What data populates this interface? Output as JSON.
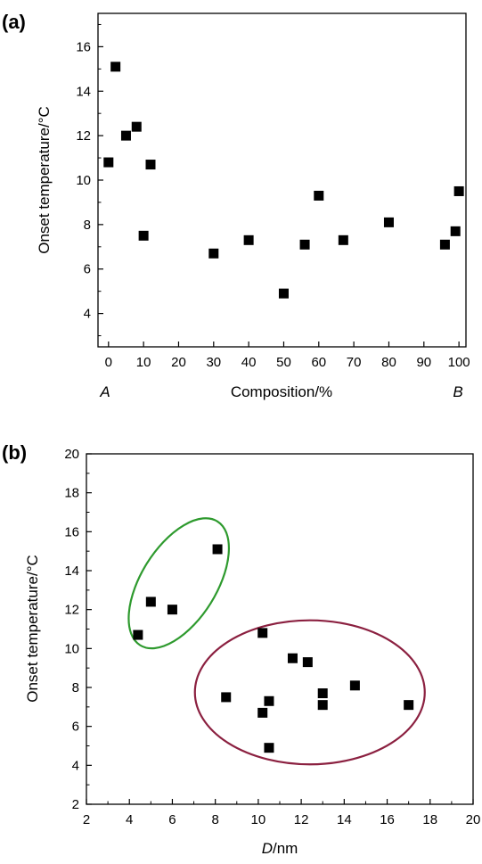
{
  "chart_data": [
    {
      "type": "scatter",
      "panel_label": "(a)",
      "xlabel": "Composition/%",
      "ylabel": "Onset temperature/°C",
      "xlim": [
        -3,
        102
      ],
      "ylim": [
        2.5,
        17.5
      ],
      "x_ticks": [
        0,
        10,
        20,
        30,
        40,
        50,
        60,
        70,
        80,
        90,
        100
      ],
      "y_ticks": [
        4,
        6,
        8,
        10,
        12,
        14,
        16
      ],
      "x_end_labels": {
        "left": "A",
        "right": "B"
      },
      "marker": "square",
      "marker_color": "#000000",
      "points": [
        {
          "x": 0,
          "y": 10.8
        },
        {
          "x": 2,
          "y": 15.1
        },
        {
          "x": 5,
          "y": 12.0
        },
        {
          "x": 8,
          "y": 12.4
        },
        {
          "x": 10,
          "y": 7.5
        },
        {
          "x": 12,
          "y": 10.7
        },
        {
          "x": 30,
          "y": 6.7
        },
        {
          "x": 40,
          "y": 7.3
        },
        {
          "x": 50,
          "y": 4.9
        },
        {
          "x": 56,
          "y": 7.1
        },
        {
          "x": 60,
          "y": 9.3
        },
        {
          "x": 67,
          "y": 7.3
        },
        {
          "x": 80,
          "y": 8.1
        },
        {
          "x": 96,
          "y": 7.1
        },
        {
          "x": 99,
          "y": 7.7
        },
        {
          "x": 100,
          "y": 9.5
        }
      ]
    },
    {
      "type": "scatter",
      "panel_label": "(b)",
      "xlabel_italic": "D",
      "xlabel_rest": "/nm",
      "ylabel": "Onset temperature/°C",
      "xlim": [
        2,
        20
      ],
      "ylim": [
        2,
        20
      ],
      "x_ticks": [
        2,
        4,
        6,
        8,
        10,
        12,
        14,
        16,
        18,
        20
      ],
      "y_ticks": [
        2,
        4,
        6,
        8,
        10,
        12,
        14,
        16,
        18,
        20
      ],
      "marker": "square",
      "marker_color": "#000000",
      "points": [
        {
          "x": 4.4,
          "y": 10.7
        },
        {
          "x": 5.0,
          "y": 12.4
        },
        {
          "x": 6.0,
          "y": 12.0
        },
        {
          "x": 8.1,
          "y": 15.1
        },
        {
          "x": 8.5,
          "y": 7.5
        },
        {
          "x": 10.2,
          "y": 10.8
        },
        {
          "x": 10.2,
          "y": 6.7
        },
        {
          "x": 10.5,
          "y": 7.3
        },
        {
          "x": 10.5,
          "y": 4.9
        },
        {
          "x": 11.6,
          "y": 9.5
        },
        {
          "x": 12.3,
          "y": 9.3
        },
        {
          "x": 13.0,
          "y": 7.7
        },
        {
          "x": 13.0,
          "y": 7.1
        },
        {
          "x": 14.5,
          "y": 8.1
        },
        {
          "x": 17.0,
          "y": 7.1
        }
      ],
      "ellipses": [
        {
          "name": "cluster-small-d",
          "color": "#2e9a2e",
          "cx": 6.3,
          "cy": 13.35,
          "rx": 1.75,
          "ry": 3.75,
          "rotation_deg": 32
        },
        {
          "name": "cluster-large-d",
          "color": "#8b2040",
          "cx": 12.4,
          "cy": 7.75,
          "rx": 5.35,
          "ry": 3.7,
          "rotation_deg": 0
        }
      ]
    }
  ]
}
